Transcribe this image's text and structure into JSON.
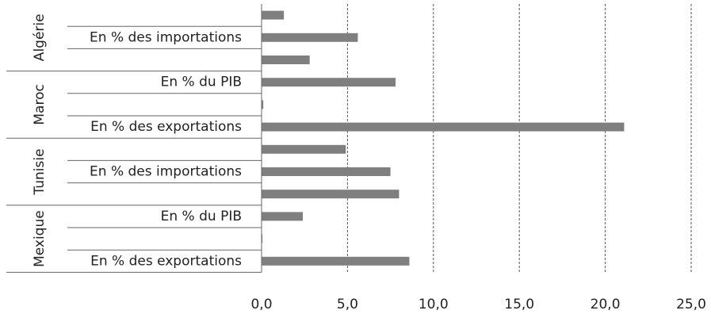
{
  "chart_data": {
    "type": "bar",
    "orientation": "horizontal",
    "color": "#7f7f7f",
    "grid": true,
    "groups": [
      {
        "name": "Algérie",
        "categories": [
          null,
          "En % des importations",
          null
        ],
        "values": [
          1.3,
          5.6,
          2.8
        ]
      },
      {
        "name": "Maroc",
        "categories": [
          "En % du PIB",
          null,
          "En % des exportations"
        ],
        "values": [
          7.8,
          0.1,
          21.1
        ]
      },
      {
        "name": "Tunisie",
        "categories": [
          null,
          "En % des importations",
          null
        ],
        "values": [
          4.9,
          7.5,
          8.0
        ]
      },
      {
        "name": "Mexique",
        "categories": [
          "En % du PIB",
          null,
          "En % des exportations"
        ],
        "values": [
          2.4,
          0.05,
          8.6
        ]
      }
    ],
    "xlim": [
      0,
      25
    ],
    "xticks": [
      {
        "value": 0,
        "label": "0,0"
      },
      {
        "value": 5,
        "label": "5,0"
      },
      {
        "value": 10,
        "label": "10,0"
      },
      {
        "value": 15,
        "label": "15,0"
      },
      {
        "value": 20,
        "label": "20,0"
      },
      {
        "value": 25,
        "label": "25,0"
      }
    ]
  }
}
